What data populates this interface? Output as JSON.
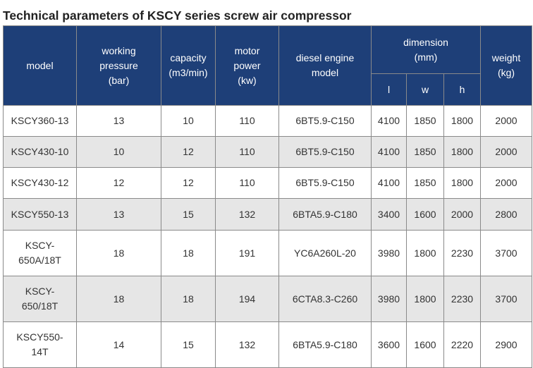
{
  "title": "Technical parameters of KSCY series screw air compressor",
  "headers": {
    "model": "model",
    "working_pressure": [
      "working",
      "pressure",
      "(bar)"
    ],
    "capacity": [
      "capacity",
      "(m3/min)"
    ],
    "motor_power": [
      "motor",
      "power",
      "(kw)"
    ],
    "diesel_engine": [
      "diesel engine",
      "model"
    ],
    "dimension": [
      "dimension",
      "(mm)"
    ],
    "dim_l": "l",
    "dim_w": "w",
    "dim_h": "h",
    "weight": [
      "weight",
      "(kg)"
    ]
  },
  "rows": [
    {
      "model": [
        "KSCY360-13"
      ],
      "pressure": "13",
      "capacity": "10",
      "power": "110",
      "engine": "6BT5.9-C150",
      "l": "4100",
      "w": "1850",
      "h": "1800",
      "weight": "2000"
    },
    {
      "model": [
        "KSCY430-10"
      ],
      "pressure": "10",
      "capacity": "12",
      "power": "110",
      "engine": "6BT5.9-C150",
      "l": "4100",
      "w": "1850",
      "h": "1800",
      "weight": "2000"
    },
    {
      "model": [
        "KSCY430-12"
      ],
      "pressure": "12",
      "capacity": "12",
      "power": "110",
      "engine": "6BT5.9-C150",
      "l": "4100",
      "w": "1850",
      "h": "1800",
      "weight": "2000"
    },
    {
      "model": [
        "KSCY550-13"
      ],
      "pressure": "13",
      "capacity": "15",
      "power": "132",
      "engine": "6BTA5.9-C180",
      "l": "3400",
      "w": "1600",
      "h": "2000",
      "weight": "2800"
    },
    {
      "model": [
        "KSCY-",
        "650A/18T"
      ],
      "pressure": "18",
      "capacity": "18",
      "power": "191",
      "engine": "YC6A260L-20",
      "l": "3980",
      "w": "1800",
      "h": "2230",
      "weight": "3700"
    },
    {
      "model": [
        "KSCY-",
        "650/18T"
      ],
      "pressure": "18",
      "capacity": "18",
      "power": "194",
      "engine": "6CTA8.3-C260",
      "l": "3980",
      "w": "1800",
      "h": "2230",
      "weight": "3700"
    },
    {
      "model": [
        "KSCY550-",
        "14T"
      ],
      "pressure": "14",
      "capacity": "15",
      "power": "132",
      "engine": "6BTA5.9-C180",
      "l": "3600",
      "w": "1600",
      "h": "2220",
      "weight": "2900"
    }
  ],
  "colors": {
    "header_bg": "#1e3f78",
    "header_text": "#ffffff",
    "row_shade": "#e6e6e6",
    "row_white": "#ffffff",
    "border": "#8a8a8a"
  }
}
